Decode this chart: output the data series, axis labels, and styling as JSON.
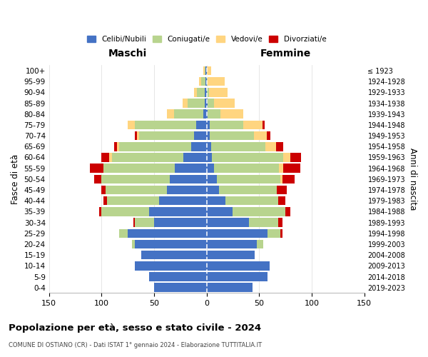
{
  "age_groups": [
    "0-4",
    "5-9",
    "10-14",
    "15-19",
    "20-24",
    "25-29",
    "30-34",
    "35-39",
    "40-44",
    "45-49",
    "50-54",
    "55-59",
    "60-64",
    "65-69",
    "70-74",
    "75-79",
    "80-84",
    "85-89",
    "90-94",
    "95-99",
    "100+"
  ],
  "birth_years": [
    "≤ 1923",
    "1924-1928",
    "1929-1933",
    "1934-1938",
    "1939-1943",
    "1944-1948",
    "1949-1953",
    "1954-1958",
    "1959-1963",
    "1964-1968",
    "1969-1973",
    "1974-1978",
    "1979-1983",
    "1984-1988",
    "1989-1993",
    "1994-1998",
    "1999-2003",
    "2004-2008",
    "2009-2013",
    "2014-2018",
    "2019-2023"
  ],
  "maschi_celibi": [
    50,
    55,
    68,
    62,
    68,
    75,
    50,
    55,
    45,
    38,
    35,
    30,
    22,
    15,
    12,
    10,
    3,
    2,
    2,
    1,
    1
  ],
  "maschi_coniugati": [
    0,
    0,
    0,
    0,
    3,
    8,
    18,
    45,
    50,
    58,
    65,
    68,
    68,
    68,
    52,
    58,
    28,
    16,
    7,
    4,
    1
  ],
  "maschi_vedovi": [
    0,
    0,
    0,
    0,
    0,
    0,
    0,
    0,
    0,
    0,
    0,
    0,
    3,
    2,
    2,
    7,
    7,
    5,
    3,
    2,
    1
  ],
  "maschi_divorziati": [
    0,
    0,
    0,
    0,
    0,
    0,
    2,
    2,
    3,
    4,
    7,
    13,
    7,
    3,
    2,
    0,
    0,
    0,
    0,
    0,
    0
  ],
  "femmine_celibi": [
    44,
    58,
    60,
    46,
    48,
    58,
    40,
    25,
    18,
    12,
    10,
    7,
    5,
    4,
    3,
    3,
    1,
    1,
    0,
    0,
    0
  ],
  "femmine_coniugati": [
    0,
    0,
    0,
    0,
    6,
    12,
    28,
    50,
    50,
    55,
    60,
    62,
    68,
    52,
    42,
    32,
    12,
    6,
    2,
    1,
    0
  ],
  "femmine_vedovi": [
    0,
    0,
    0,
    0,
    0,
    0,
    0,
    0,
    0,
    0,
    2,
    4,
    7,
    10,
    12,
    18,
    22,
    20,
    18,
    16,
    4
  ],
  "femmine_divorziati": [
    0,
    0,
    0,
    0,
    0,
    2,
    4,
    5,
    7,
    9,
    12,
    16,
    10,
    7,
    4,
    2,
    0,
    0,
    0,
    0,
    0
  ],
  "color_celibi": "#4472C4",
  "color_coniugati": "#B8D48E",
  "color_vedovi": "#FFD580",
  "color_divorziati": "#CC0000",
  "title": "Popolazione per età, sesso e stato civile - 2024",
  "subtitle": "COMUNE DI OSTIANO (CR) - Dati ISTAT 1° gennaio 2024 - Elaborazione TUTTITALIA.IT",
  "xlabel_left": "Maschi",
  "xlabel_right": "Femmine",
  "ylabel_left": "Fasce di età",
  "ylabel_right": "Anni di nascita",
  "xlim": 150,
  "bg_color": "#ffffff",
  "grid_color": "#cccccc"
}
